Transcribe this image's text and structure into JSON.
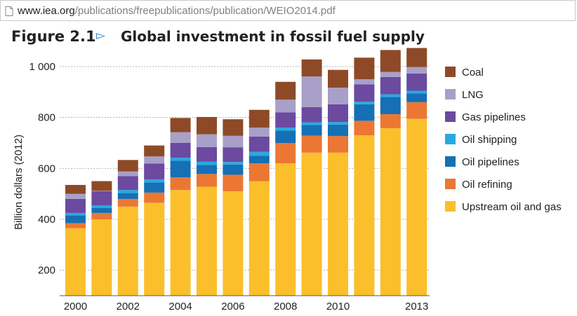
{
  "browser": {
    "url_host": "www.iea.org",
    "url_path": "/publications/freepublications/publication/WEIO2014.pdf"
  },
  "figure": {
    "number": "Figure 2.1",
    "arrow": "▻",
    "title": "Global investment in fossil fuel supply"
  },
  "chart_data": {
    "type": "bar",
    "stacked": true,
    "title": "Global investment in fossil fuel supply",
    "ylabel": "Billion dollars (2012)",
    "xlabel": "",
    "ylim": [
      100,
      1000
    ],
    "yticks": [
      200,
      400,
      600,
      800,
      1000
    ],
    "ytick_labels": [
      "200",
      "400",
      "600",
      "800",
      "1 000"
    ],
    "grid": "horizontal dotted",
    "legend_position": "right",
    "categories": [
      2000,
      2001,
      2002,
      2003,
      2004,
      2005,
      2006,
      2007,
      2008,
      2009,
      2010,
      2011,
      2012,
      2013
    ],
    "xtick_labels": [
      "2000",
      "",
      "2002",
      "",
      "2004",
      "",
      "2006",
      "",
      "2008",
      "",
      "2010",
      "",
      "",
      "2013"
    ],
    "series": [
      {
        "name": "Upstream oil and gas",
        "color": "#fbbf2b",
        "values": [
          265,
          300,
          350,
          365,
          415,
          428,
          410,
          450,
          520,
          562,
          562,
          630,
          658,
          695
        ]
      },
      {
        "name": "Oil refining",
        "color": "#eb7733",
        "values": [
          20,
          25,
          30,
          40,
          50,
          50,
          65,
          70,
          80,
          67,
          65,
          57,
          55,
          65
        ]
      },
      {
        "name": "Oil pipelines",
        "color": "#1570b5",
        "values": [
          30,
          20,
          23,
          40,
          65,
          36,
          40,
          30,
          48,
          42,
          45,
          65,
          68,
          35
        ]
      },
      {
        "name": "Oil shipping",
        "color": "#28a9e1",
        "values": [
          10,
          10,
          12,
          12,
          12,
          12,
          10,
          15,
          12,
          10,
          10,
          10,
          10,
          10
        ]
      },
      {
        "name": "Gas pipelines",
        "color": "#6b4aa0",
        "values": [
          55,
          55,
          55,
          62,
          58,
          58,
          58,
          60,
          60,
          60,
          70,
          68,
          68,
          68
        ]
      },
      {
        "name": "LNG",
        "color": "#a8a0c8",
        "values": [
          20,
          2,
          18,
          28,
          42,
          50,
          45,
          35,
          50,
          120,
          65,
          20,
          20,
          25
        ]
      },
      {
        "name": "Coal",
        "color": "#8e4a27",
        "values": [
          35,
          38,
          45,
          43,
          56,
          68,
          65,
          70,
          70,
          67,
          70,
          85,
          86,
          75
        ]
      }
    ]
  }
}
